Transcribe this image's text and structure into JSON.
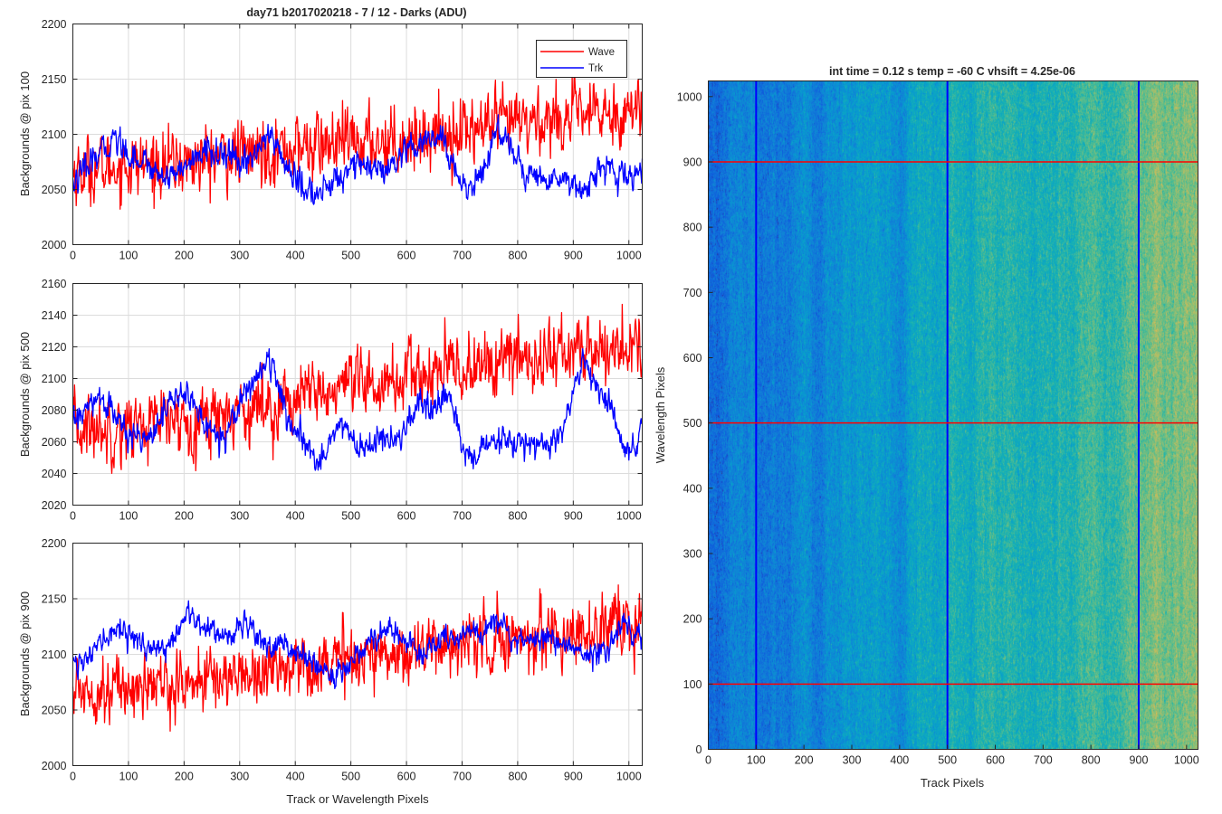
{
  "figure": {
    "title": "day71 b2017020218 - 7 / 12 - Darks (ADU)",
    "colors": {
      "wave": "#ff0000",
      "trk": "#0000ff",
      "axis": "#262626",
      "grid": "#dcdcdc"
    }
  },
  "chart_data": [
    {
      "type": "line",
      "title": "day71 b2017020218 - 7 / 12 - Darks (ADU)",
      "xlabel": "",
      "ylabel": "Backgrounds @ pix 100",
      "xlim": [
        0,
        1024
      ],
      "ylim": [
        2000,
        2200
      ],
      "x_ticks": [
        0,
        100,
        200,
        300,
        400,
        500,
        600,
        700,
        800,
        900,
        1000
      ],
      "y_ticks": [
        2000,
        2050,
        2100,
        2150,
        2200
      ],
      "grid": true,
      "legend": {
        "placement": "top-right",
        "entries": [
          "Wave",
          "Trk"
        ]
      },
      "series": [
        {
          "name": "Wave",
          "color": "#ff0000",
          "noise": 14,
          "keypoints": [
            [
              0,
              2066
            ],
            [
              100,
              2072
            ],
            [
              200,
              2074
            ],
            [
              300,
              2082
            ],
            [
              400,
              2088
            ],
            [
              500,
              2092
            ],
            [
              600,
              2096
            ],
            [
              700,
              2104
            ],
            [
              800,
              2110
            ],
            [
              900,
              2116
            ],
            [
              1024,
              2122
            ]
          ]
        },
        {
          "name": "Trk",
          "color": "#0000ff",
          "noise": 6,
          "keypoints": [
            [
              0,
              2055
            ],
            [
              30,
              2072
            ],
            [
              60,
              2088
            ],
            [
              75,
              2098
            ],
            [
              100,
              2082
            ],
            [
              130,
              2075
            ],
            [
              160,
              2062
            ],
            [
              200,
              2070
            ],
            [
              240,
              2085
            ],
            [
              270,
              2083
            ],
            [
              300,
              2072
            ],
            [
              330,
              2085
            ],
            [
              355,
              2100
            ],
            [
              380,
              2075
            ],
            [
              410,
              2052
            ],
            [
              440,
              2045
            ],
            [
              480,
              2060
            ],
            [
              500,
              2075
            ],
            [
              530,
              2070
            ],
            [
              560,
              2064
            ],
            [
              600,
              2082
            ],
            [
              625,
              2090
            ],
            [
              660,
              2098
            ],
            [
              690,
              2065
            ],
            [
              710,
              2050
            ],
            [
              725,
              2055
            ],
            [
              750,
              2085
            ],
            [
              765,
              2105
            ],
            [
              790,
              2090
            ],
            [
              810,
              2065
            ],
            [
              850,
              2058
            ],
            [
              880,
              2062
            ],
            [
              920,
              2050
            ],
            [
              950,
              2072
            ],
            [
              980,
              2060
            ],
            [
              1024,
              2065
            ]
          ]
        }
      ]
    },
    {
      "type": "line",
      "title": "",
      "xlabel": "",
      "ylabel": "Backgrounds @ pix 500",
      "xlim": [
        0,
        1024
      ],
      "ylim": [
        2020,
        2160
      ],
      "x_ticks": [
        0,
        100,
        200,
        300,
        400,
        500,
        600,
        700,
        800,
        900,
        1000
      ],
      "y_ticks": [
        2020,
        2040,
        2060,
        2080,
        2100,
        2120,
        2140,
        2160
      ],
      "grid": true,
      "series": [
        {
          "name": "Wave",
          "color": "#ff0000",
          "noise": 10,
          "keypoints": [
            [
              0,
              2068
            ],
            [
              100,
              2070
            ],
            [
              200,
              2073
            ],
            [
              300,
              2080
            ],
            [
              400,
              2087
            ],
            [
              500,
              2093
            ],
            [
              600,
              2100
            ],
            [
              700,
              2106
            ],
            [
              800,
              2112
            ],
            [
              900,
              2117
            ],
            [
              1024,
              2120
            ]
          ]
        },
        {
          "name": "Trk",
          "color": "#0000ff",
          "noise": 4,
          "keypoints": [
            [
              0,
              2072
            ],
            [
              30,
              2082
            ],
            [
              50,
              2088
            ],
            [
              80,
              2075
            ],
            [
              100,
              2062
            ],
            [
              140,
              2066
            ],
            [
              170,
              2082
            ],
            [
              200,
              2092
            ],
            [
              240,
              2070
            ],
            [
              270,
              2063
            ],
            [
              300,
              2085
            ],
            [
              330,
              2102
            ],
            [
              355,
              2112
            ],
            [
              380,
              2080
            ],
            [
              410,
              2060
            ],
            [
              440,
              2048
            ],
            [
              470,
              2065
            ],
            [
              490,
              2072
            ],
            [
              510,
              2055
            ],
            [
              560,
              2062
            ],
            [
              580,
              2058
            ],
            [
              620,
              2082
            ],
            [
              650,
              2080
            ],
            [
              680,
              2088
            ],
            [
              700,
              2058
            ],
            [
              720,
              2048
            ],
            [
              740,
              2058
            ],
            [
              800,
              2060
            ],
            [
              850,
              2057
            ],
            [
              880,
              2064
            ],
            [
              900,
              2090
            ],
            [
              920,
              2113
            ],
            [
              940,
              2095
            ],
            [
              970,
              2080
            ],
            [
              990,
              2055
            ],
            [
              1010,
              2050
            ],
            [
              1024,
              2075
            ]
          ]
        }
      ]
    },
    {
      "type": "line",
      "title": "",
      "xlabel": "Track or Wavelength Pixels",
      "ylabel": "Backgrounds @ pix 900",
      "xlim": [
        0,
        1024
      ],
      "ylim": [
        2000,
        2200
      ],
      "x_ticks": [
        0,
        100,
        200,
        300,
        400,
        500,
        600,
        700,
        800,
        900,
        1000
      ],
      "y_ticks": [
        2000,
        2050,
        2100,
        2150,
        2200
      ],
      "grid": true,
      "series": [
        {
          "name": "Wave",
          "color": "#ff0000",
          "noise": 13,
          "keypoints": [
            [
              0,
              2068
            ],
            [
              100,
              2070
            ],
            [
              200,
              2074
            ],
            [
              300,
              2082
            ],
            [
              400,
              2090
            ],
            [
              500,
              2097
            ],
            [
              600,
              2103
            ],
            [
              700,
              2110
            ],
            [
              800,
              2115
            ],
            [
              900,
              2120
            ],
            [
              1024,
              2124
            ]
          ]
        },
        {
          "name": "Trk",
          "color": "#0000ff",
          "noise": 5,
          "keypoints": [
            [
              0,
              2100
            ],
            [
              20,
              2090
            ],
            [
              50,
              2110
            ],
            [
              80,
              2125
            ],
            [
              100,
              2118
            ],
            [
              130,
              2108
            ],
            [
              150,
              2100
            ],
            [
              180,
              2115
            ],
            [
              210,
              2135
            ],
            [
              230,
              2128
            ],
            [
              260,
              2120
            ],
            [
              290,
              2118
            ],
            [
              310,
              2130
            ],
            [
              330,
              2120
            ],
            [
              355,
              2105
            ],
            [
              380,
              2112
            ],
            [
              400,
              2100
            ],
            [
              430,
              2092
            ],
            [
              470,
              2080
            ],
            [
              500,
              2095
            ],
            [
              540,
              2115
            ],
            [
              570,
              2122
            ],
            [
              600,
              2112
            ],
            [
              630,
              2098
            ],
            [
              660,
              2115
            ],
            [
              690,
              2110
            ],
            [
              720,
              2125
            ],
            [
              740,
              2118
            ],
            [
              760,
              2138
            ],
            [
              790,
              2115
            ],
            [
              820,
              2112
            ],
            [
              860,
              2116
            ],
            [
              880,
              2110
            ],
            [
              900,
              2106
            ],
            [
              930,
              2098
            ],
            [
              960,
              2104
            ],
            [
              990,
              2130
            ],
            [
              1010,
              2122
            ],
            [
              1024,
              2118
            ]
          ]
        }
      ]
    },
    {
      "type": "heatmap",
      "title": "int time = 0.12 s    temp = -60 C    vhsift = 4.25e-06",
      "xlabel": "Track Pixels",
      "ylabel": "Wavelength Pixels",
      "xlim": [
        0,
        1024
      ],
      "ylim": [
        0,
        1024
      ],
      "x_ticks": [
        0,
        100,
        200,
        300,
        400,
        500,
        600,
        700,
        800,
        900,
        1000
      ],
      "y_ticks": [
        0,
        100,
        200,
        300,
        400,
        500,
        600,
        700,
        800,
        900,
        1000
      ],
      "colormap": "parula",
      "value_gradient_x": [
        [
          0,
          0.18
        ],
        [
          300,
          0.28
        ],
        [
          600,
          0.38
        ],
        [
          900,
          0.5
        ],
        [
          1024,
          0.55
        ]
      ],
      "vertical_markers": {
        "x": [
          100,
          500,
          900
        ],
        "color": "#0000ff"
      },
      "horizontal_markers": {
        "y": [
          100,
          500,
          900
        ],
        "color": "#ff0000"
      }
    }
  ]
}
